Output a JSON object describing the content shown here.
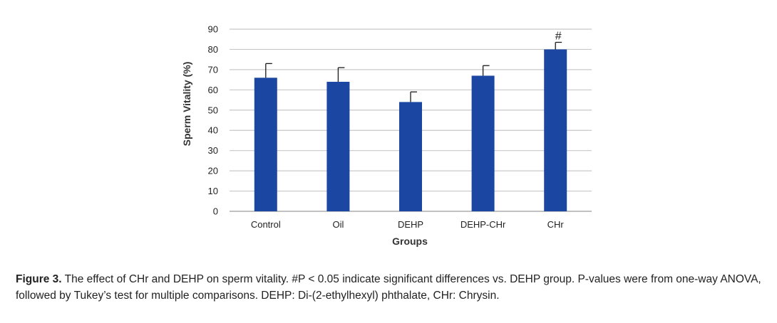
{
  "chart_data": {
    "type": "bar",
    "categories": [
      "Control",
      "Oil",
      "DEHP",
      "DEHP-CHr",
      "CHr"
    ],
    "values": [
      66,
      64,
      54,
      67,
      80
    ],
    "errors": [
      7,
      7,
      5,
      5,
      3.5
    ],
    "annotations": [
      "",
      "",
      "",
      "",
      "#"
    ],
    "xlabel": "Groups",
    "ylabel": "Sperm Vitality  (%)",
    "ylim": [
      0,
      90
    ],
    "yticks": [
      0,
      10,
      20,
      30,
      40,
      50,
      60,
      70,
      80,
      90
    ],
    "grid": true,
    "bar_color": "#1b47a3"
  },
  "caption": {
    "label": "Figure 3.",
    "text": " The effect of CHr and DEHP on sperm vitality. #P < 0.05 indicate significant differences vs. DEHP group. P-values were from one-way ANOVA, followed by Tukey’s test for multiple comparisons. DEHP: Di-(2-ethylhexyl) phthalate, CHr: Chrysin."
  }
}
